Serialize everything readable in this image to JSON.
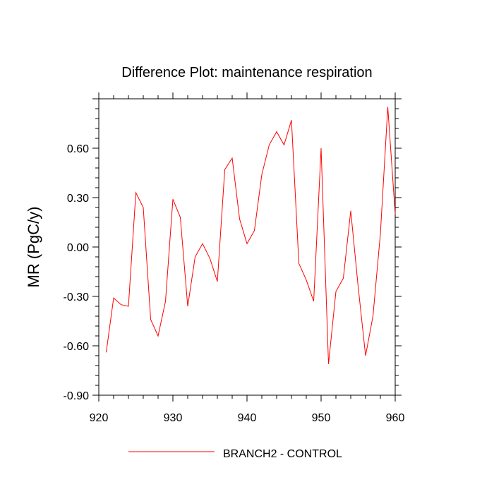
{
  "chart_data": {
    "type": "line",
    "title": "Difference Plot: maintenance respiration",
    "xlabel": "",
    "ylabel": "MR  (PgC/y)",
    "xlim": [
      920,
      960
    ],
    "ylim": [
      -0.9,
      0.9
    ],
    "x_ticks": [
      920,
      930,
      940,
      950,
      960
    ],
    "y_ticks": [
      -0.9,
      -0.6,
      -0.3,
      0.0,
      0.3,
      0.6
    ],
    "x_tick_labels": [
      "920",
      "930",
      "940",
      "950",
      "960"
    ],
    "y_tick_labels": [
      "-0.90",
      "-0.60",
      "-0.30",
      "0.00",
      "0.30",
      "0.60"
    ],
    "grid": false,
    "legend_position": "bottom",
    "series": [
      {
        "name": "BRANCH2 - CONTROL",
        "color": "#ff0000",
        "x": [
          921,
          922,
          923,
          924,
          925,
          926,
          927,
          928,
          929,
          930,
          931,
          932,
          933,
          934,
          935,
          936,
          937,
          938,
          939,
          940,
          941,
          942,
          943,
          944,
          945,
          946,
          947,
          948,
          949,
          950,
          951,
          952,
          953,
          954,
          955,
          956,
          957,
          958,
          959,
          960
        ],
        "y": [
          -0.64,
          -0.31,
          -0.35,
          -0.36,
          0.33,
          0.24,
          -0.44,
          -0.54,
          -0.33,
          0.29,
          0.18,
          -0.36,
          -0.06,
          0.02,
          -0.07,
          -0.21,
          0.47,
          0.54,
          0.17,
          0.02,
          0.1,
          0.44,
          0.62,
          0.7,
          0.62,
          0.77,
          -0.1,
          -0.2,
          -0.33,
          0.6,
          -0.71,
          -0.27,
          -0.19,
          0.22,
          -0.24,
          -0.66,
          -0.42,
          0.08,
          0.85,
          0.2
        ]
      }
    ]
  }
}
